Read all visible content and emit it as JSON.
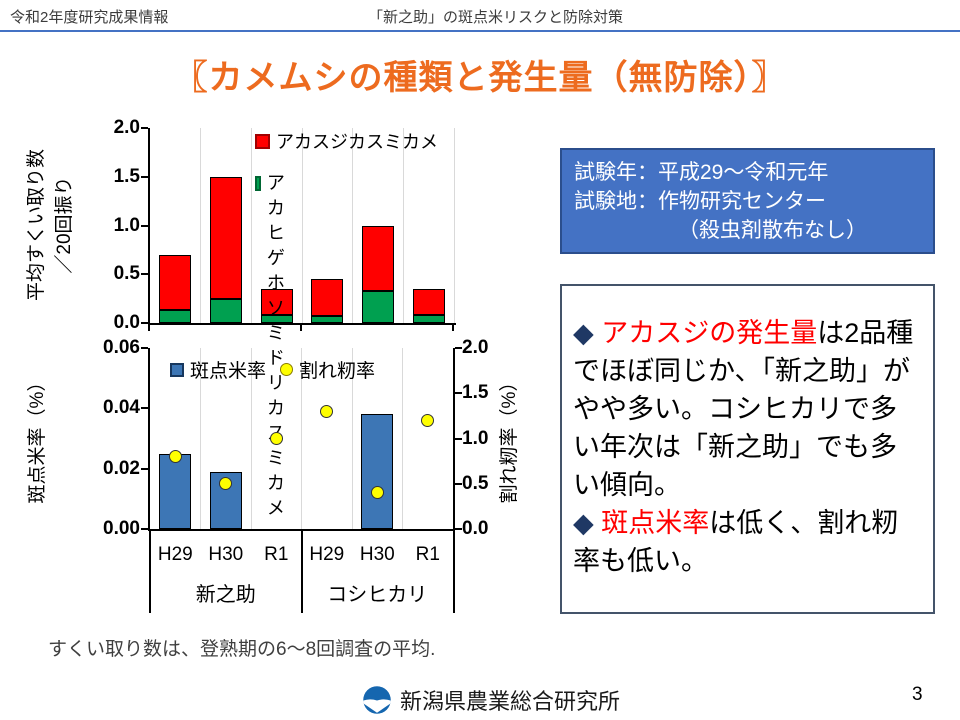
{
  "header": {
    "left": "令和2年度研究成果情報",
    "right": "「新之助」の斑点米リスクと防除対策"
  },
  "title": "〖カメムシの種類と発生量（無防除）〗",
  "colors": {
    "accent_blue": "#4472C4",
    "bar_red": "#FF0000",
    "bar_green": "#00A050",
    "bar_blue": "#3D76B5",
    "dot_yellow": "#FFFF00",
    "title_orange": "#ED6B1F",
    "bullet_navy": "#1F3864",
    "highlight_red": "#FF0000",
    "gridline_gray": "#D9D9D9",
    "logo_blue": "#1566AF"
  },
  "chart_data": [
    {
      "type": "bar",
      "stacked": true,
      "ylabel": "平均すくい取り数／20回振り",
      "ylabel_line1": "平均すくい取り数",
      "ylabel_line2": "／20回振り",
      "ylim": [
        0,
        2.0
      ],
      "ytick_labels": [
        "0.0",
        "0.5",
        "1.0",
        "1.5",
        "2.0"
      ],
      "grid": true,
      "legend_position": "top-inside",
      "categories": [
        "H29",
        "H30",
        "R1",
        "H29",
        "H30",
        "R1"
      ],
      "group_labels": [
        "新之助",
        "コシヒカリ"
      ],
      "series": [
        {
          "name": "アカヒゲホソミドリカスミカメ",
          "color": "#00A050",
          "values": [
            0.13,
            0.25,
            0.08,
            0.07,
            0.33,
            0.08
          ]
        },
        {
          "name": "アカスジカスミカメ",
          "color": "#FF0000",
          "values": [
            0.57,
            1.25,
            0.27,
            0.38,
            0.67,
            0.27
          ]
        }
      ],
      "totals": [
        0.7,
        1.5,
        0.35,
        0.45,
        1.0,
        0.35
      ],
      "legend": {
        "item1": "アカスジカスミカメ",
        "item2_line1": "アカヒゲホソミドリ",
        "item2_line2": "カスミカメ"
      }
    },
    {
      "type": "bar+scatter",
      "left_ylabel": "斑点米率（%）",
      "right_ylabel": "割れ籾率（%）",
      "left_ylim": [
        0,
        0.06
      ],
      "right_ylim": [
        0,
        2.0
      ],
      "left_ytick_labels": [
        "0.00",
        "0.02",
        "0.04",
        "0.06"
      ],
      "right_ytick_labels": [
        "0.0",
        "0.5",
        "1.0",
        "1.5",
        "2.0"
      ],
      "grid": true,
      "legend_position": "top-inside",
      "categories": [
        "H29",
        "H30",
        "R1",
        "H29",
        "H30",
        "R1"
      ],
      "group_labels": [
        "新之助",
        "コシヒカリ"
      ],
      "series": [
        {
          "name": "斑点米率",
          "type": "bar",
          "axis": "left",
          "color": "#3D76B5",
          "values": [
            0.025,
            0.019,
            0,
            0,
            0.038,
            0
          ]
        },
        {
          "name": "割れ籾率",
          "type": "scatter",
          "axis": "right",
          "color": "#FFFF00",
          "values": [
            0.8,
            0.5,
            1.0,
            1.3,
            0.4,
            1.2
          ]
        }
      ]
    }
  ],
  "info_box": {
    "line1": "試験年：平成29～令和元年",
    "line2": "試験地：作物研究センター",
    "line3": "（殺虫剤散布なし）"
  },
  "findings": {
    "bullets": [
      {
        "segments": [
          {
            "t": "◆ ",
            "c": "navy"
          },
          {
            "t": "アカスジの発生量",
            "c": "red"
          },
          {
            "t": "は2品種でほぼ同じか、「新之助」がやや多い。コシヒカリで多い年次は「新之助」でも多い傾向。",
            "c": "black"
          }
        ]
      },
      {
        "segments": [
          {
            "t": "◆ ",
            "c": "navy"
          },
          {
            "t": "斑点米率",
            "c": "red"
          },
          {
            "t": "は低く、割れ籾率も低い。",
            "c": "black"
          }
        ]
      }
    ]
  },
  "note": "すくい取り数は、登熟期の6～8回調査の平均.",
  "footer": {
    "org": "新潟県農業総合研究所",
    "logo": "niigata-agri-logo",
    "page": "3"
  }
}
